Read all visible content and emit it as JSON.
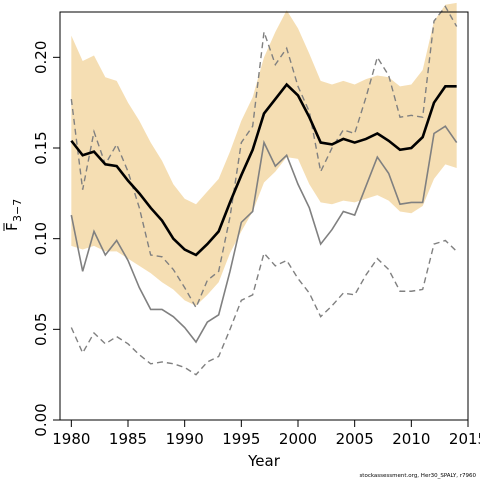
{
  "chart_data": {
    "type": "line",
    "xlabel": "Year",
    "ylabel_main": "F",
    "ylabel_sub": "3−7",
    "credit": "stockassessment.org, Her30_SPALY, r7960",
    "xlim": [
      1979,
      2015
    ],
    "ylim": [
      0,
      0.225
    ],
    "x_ticks": [
      1980,
      1985,
      1990,
      1995,
      2000,
      2005,
      2010,
      2015
    ],
    "y_ticks": [
      0.0,
      0.05,
      0.1,
      0.15,
      0.2
    ],
    "y_tick_labels": [
      "0.00",
      "0.05",
      "0.10",
      "0.15",
      "0.20"
    ],
    "colors": {
      "band": "#f5deb3",
      "estimate": "#000000",
      "grey_line": "#808080",
      "dashed": "#808080"
    },
    "years": [
      1980,
      1981,
      1982,
      1983,
      1984,
      1985,
      1986,
      1987,
      1988,
      1989,
      1990,
      1991,
      1992,
      1993,
      1994,
      1995,
      1996,
      1997,
      1998,
      1999,
      2000,
      2001,
      2002,
      2003,
      2004,
      2005,
      2006,
      2007,
      2008,
      2009,
      2010,
      2011,
      2012,
      2013,
      2014
    ],
    "series": [
      {
        "role": "ci_upper",
        "values": [
          0.212,
          0.198,
          0.201,
          0.189,
          0.187,
          0.175,
          0.165,
          0.153,
          0.143,
          0.13,
          0.122,
          0.119,
          0.126,
          0.133,
          0.148,
          0.165,
          0.178,
          0.2,
          0.214,
          0.226,
          0.216,
          0.202,
          0.187,
          0.185,
          0.187,
          0.185,
          0.188,
          0.19,
          0.189,
          0.184,
          0.185,
          0.193,
          0.22,
          0.229,
          0.23
        ]
      },
      {
        "role": "ci_lower",
        "values": [
          0.096,
          0.094,
          0.096,
          0.093,
          0.093,
          0.089,
          0.085,
          0.081,
          0.076,
          0.072,
          0.066,
          0.063,
          0.069,
          0.076,
          0.092,
          0.104,
          0.115,
          0.131,
          0.137,
          0.145,
          0.144,
          0.13,
          0.12,
          0.119,
          0.121,
          0.12,
          0.122,
          0.124,
          0.121,
          0.115,
          0.114,
          0.118,
          0.133,
          0.141,
          0.139
        ]
      },
      {
        "role": "estimate",
        "values": [
          0.154,
          0.146,
          0.148,
          0.141,
          0.14,
          0.132,
          0.125,
          0.117,
          0.11,
          0.1,
          0.094,
          0.091,
          0.097,
          0.104,
          0.12,
          0.135,
          0.149,
          0.169,
          0.177,
          0.185,
          0.179,
          0.167,
          0.153,
          0.152,
          0.155,
          0.153,
          0.155,
          0.158,
          0.154,
          0.149,
          0.15,
          0.156,
          0.175,
          0.184,
          0.184
        ]
      },
      {
        "role": "grey_line",
        "values": [
          0.113,
          0.082,
          0.104,
          0.091,
          0.099,
          0.088,
          0.073,
          0.061,
          0.061,
          0.057,
          0.051,
          0.043,
          0.054,
          0.058,
          0.082,
          0.109,
          0.115,
          0.153,
          0.14,
          0.146,
          0.13,
          0.117,
          0.097,
          0.105,
          0.115,
          0.113,
          0.129,
          0.145,
          0.136,
          0.119,
          0.12,
          0.12,
          0.158,
          0.162,
          0.153
        ]
      },
      {
        "role": "dashed_upper",
        "values": [
          0.177,
          0.127,
          0.159,
          0.141,
          0.152,
          0.137,
          0.117,
          0.091,
          0.09,
          0.083,
          0.073,
          0.062,
          0.077,
          0.082,
          0.112,
          0.153,
          0.162,
          0.214,
          0.196,
          0.205,
          0.184,
          0.17,
          0.137,
          0.15,
          0.16,
          0.158,
          0.178,
          0.2,
          0.19,
          0.167,
          0.168,
          0.167,
          0.22,
          0.228,
          0.217
        ]
      },
      {
        "role": "dashed_lower",
        "values": [
          0.051,
          0.037,
          0.048,
          0.042,
          0.046,
          0.042,
          0.036,
          0.031,
          0.032,
          0.031,
          0.029,
          0.025,
          0.032,
          0.035,
          0.05,
          0.066,
          0.069,
          0.092,
          0.085,
          0.088,
          0.078,
          0.07,
          0.057,
          0.063,
          0.07,
          0.069,
          0.08,
          0.089,
          0.083,
          0.071,
          0.071,
          0.072,
          0.097,
          0.099,
          0.093
        ]
      }
    ]
  }
}
